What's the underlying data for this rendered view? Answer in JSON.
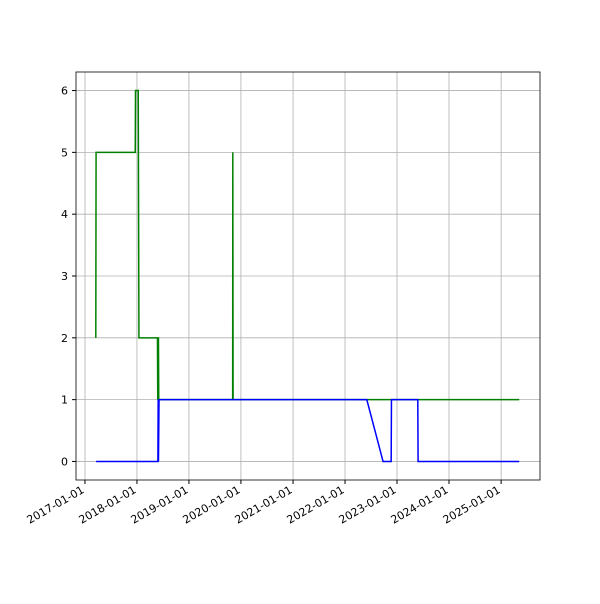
{
  "chart_data": {
    "type": "line",
    "xlim": [
      "2016-10-30",
      "2025-10-01"
    ],
    "xticks": [
      "2017-01-01",
      "2018-01-01",
      "2019-01-01",
      "2020-01-01",
      "2021-01-01",
      "2022-01-01",
      "2023-01-01",
      "2024-01-01",
      "2025-01-01"
    ],
    "ylim": [
      -0.3,
      6.3
    ],
    "yticks": [
      0,
      1,
      2,
      3,
      4,
      5,
      6
    ],
    "grid": true,
    "series": [
      {
        "color": "#008000",
        "x": [
          "2017-03-18",
          "2017-03-20",
          "2017-12-20",
          "2017-12-22",
          "2018-01-10",
          "2018-01-15",
          "2018-05-25",
          "2018-05-27",
          "2018-05-29",
          "2018-06-01",
          "2018-06-03",
          "2019-11-04",
          "2019-11-05",
          "2019-11-07",
          "2025-05-08"
        ],
        "values": [
          2,
          5,
          5,
          6,
          6,
          2,
          2,
          1,
          2,
          2,
          1,
          1,
          5,
          1,
          1
        ]
      },
      {
        "color": "#0000ff",
        "x": [
          "2017-03-20",
          "2018-05-28",
          "2018-05-30",
          "2018-06-01",
          "2018-06-05",
          "2022-06-03",
          "2022-09-25",
          "2022-11-21",
          "2022-11-23",
          "2023-05-27",
          "2023-05-29",
          "2025-05-08"
        ],
        "values": [
          0,
          0,
          1,
          0,
          1,
          1,
          0,
          0,
          1,
          1,
          0,
          0
        ]
      }
    ]
  }
}
